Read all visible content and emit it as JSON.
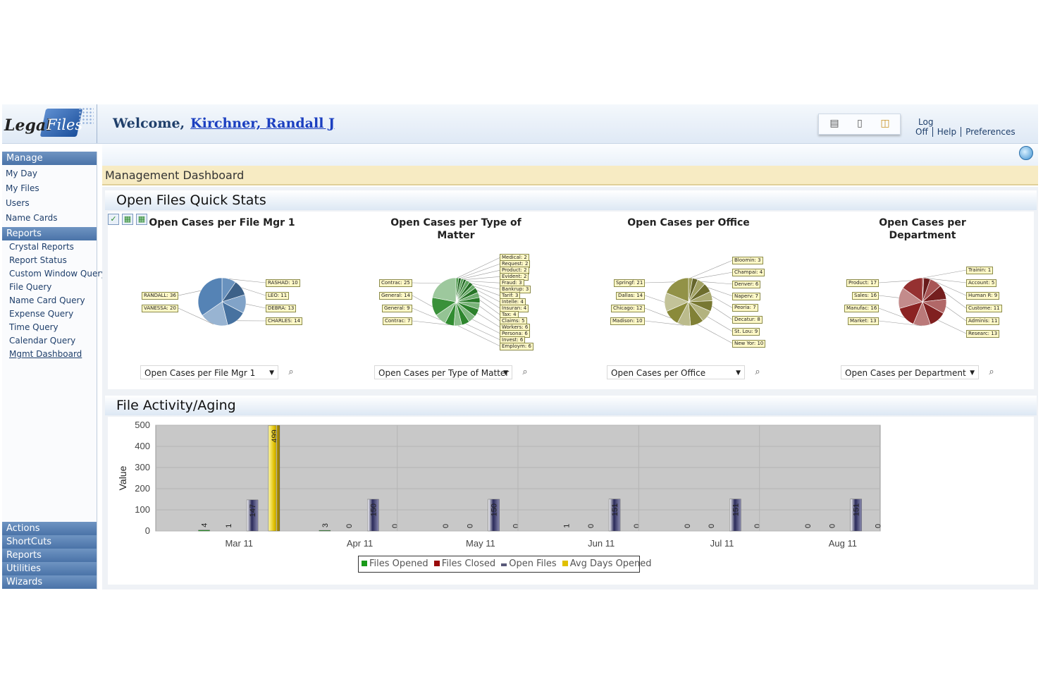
{
  "app": {
    "logo_part1": "Legal",
    "logo_part2": "Files"
  },
  "header": {
    "welcome_prefix": "Welcome,",
    "user_name": "Kirchner, Randall J",
    "links": [
      "Log Off",
      "Help",
      "Preferences"
    ],
    "tool_icons": [
      "properties-icon",
      "new-document-icon",
      "open-folder-icon"
    ]
  },
  "sidebar": {
    "manage_label": "Manage",
    "manage_items": [
      "My Day",
      "My Files",
      "Users",
      "Name Cards"
    ],
    "reports_label": "Reports",
    "reports_items": [
      "Crystal Reports",
      "Report Status",
      "Custom Window Query",
      "File Query",
      "Name Card Query",
      "Expense Query",
      "Time Query",
      "Calendar Query",
      "Mgmt Dashboard"
    ],
    "bottom_sections": [
      "Actions",
      "ShortCuts",
      "Reports",
      "Utilities",
      "Wizards"
    ]
  },
  "dashboard": {
    "title": "Management Dashboard",
    "quick_stats_title": "Open Files Quick Stats",
    "activity_title": "File Activity/Aging"
  },
  "colors": {
    "file_mgr": "#4f7fb2",
    "type_of_matter": "#2e8a2e",
    "office": "#8a8a3a",
    "department": "#8e2424",
    "files_opened": "#1a9a1a",
    "files_closed": "#9a0a0a",
    "open_files": "#2a2a5a",
    "avg_days_opened": "#e0c000"
  },
  "pies": [
    {
      "title_line1": "Open Cases per File Mgr 1",
      "title_line2": "",
      "selector": "Open Cases per File Mgr 1",
      "color": "#4f7fb2",
      "slices": [
        {
          "label": "RASHAD",
          "value": 10
        },
        {
          "label": "LEO",
          "value": 11
        },
        {
          "label": "DEBRA",
          "value": 13
        },
        {
          "label": "CHARLES",
          "value": 14
        },
        {
          "label": "VANESSA",
          "value": 20
        },
        {
          "label": "RANDALL",
          "value": 36
        }
      ]
    },
    {
      "title_line1": "Open Cases per Type of",
      "title_line2": "Matter",
      "selector": "Open Cases per Type of Matter",
      "color": "#2e8a2e",
      "slices": [
        {
          "label": "Medical",
          "value": 2
        },
        {
          "label": "Request",
          "value": 2
        },
        {
          "label": "Product",
          "value": 2
        },
        {
          "label": "Evident",
          "value": 2
        },
        {
          "label": "Fraud",
          "value": 3
        },
        {
          "label": "Bankrup",
          "value": 3
        },
        {
          "label": "Tarif",
          "value": 3
        },
        {
          "label": "Intelle",
          "value": 4
        },
        {
          "label": "Insuran",
          "value": 4
        },
        {
          "label": "Tax",
          "value": 4
        },
        {
          "label": "Claims",
          "value": 5
        },
        {
          "label": "Workers",
          "value": 6
        },
        {
          "label": "Persona",
          "value": 6
        },
        {
          "label": "Invest",
          "value": 6
        },
        {
          "label": "Employm",
          "value": 6
        },
        {
          "label": "Contrac",
          "value": 7
        },
        {
          "label": "General",
          "value": 9
        },
        {
          "label": "General",
          "value": 14
        },
        {
          "label": "Contrac",
          "value": 25
        }
      ]
    },
    {
      "title_line1": "Open Cases per Office",
      "title_line2": "",
      "selector": "Open Cases per Office",
      "color": "#8a8a3a",
      "slices": [
        {
          "label": "Bloomin",
          "value": 3
        },
        {
          "label": "Champai",
          "value": 4
        },
        {
          "label": "Denver",
          "value": 6
        },
        {
          "label": "Naperv",
          "value": 7
        },
        {
          "label": "Peoria",
          "value": 7
        },
        {
          "label": "Decatur",
          "value": 8
        },
        {
          "label": "St. Lou",
          "value": 9
        },
        {
          "label": "New Yor",
          "value": 10
        },
        {
          "label": "Madison",
          "value": 10
        },
        {
          "label": "Chicago",
          "value": 12
        },
        {
          "label": "Dallas",
          "value": 14
        },
        {
          "label": "Springf",
          "value": 21
        }
      ]
    },
    {
      "title_line1": "Open Cases per",
      "title_line2": "Department",
      "selector": "Open Cases per Department",
      "color": "#8e2424",
      "slices": [
        {
          "label": "Trainin",
          "value": 1
        },
        {
          "label": "Account",
          "value": 5
        },
        {
          "label": "Human R",
          "value": 9
        },
        {
          "label": "Custome",
          "value": 11
        },
        {
          "label": "Adminis",
          "value": 11
        },
        {
          "label": "Researc",
          "value": 13
        },
        {
          "label": "Market",
          "value": 13
        },
        {
          "label": "Manufac",
          "value": 16
        },
        {
          "label": "Sales",
          "value": 16
        },
        {
          "label": "Product",
          "value": 17
        }
      ]
    }
  ],
  "chart_data": {
    "type": "bar",
    "categories": [
      "Mar 11",
      "Apr 11",
      "May 11",
      "Jun 11",
      "Jul 11",
      "Aug 11"
    ],
    "ylabel": "Value",
    "ylim": [
      0,
      500
    ],
    "yticks": [
      0,
      100,
      200,
      300,
      400,
      500
    ],
    "grid": true,
    "legend": "bottom",
    "series": [
      {
        "name": "Files Opened",
        "values": [
          4,
          3,
          0,
          1,
          0,
          0
        ]
      },
      {
        "name": "Files Closed",
        "values": [
          1,
          0,
          0,
          0,
          0,
          0
        ]
      },
      {
        "name": "Open Files",
        "values": [
          147,
          150,
          150,
          151,
          151,
          151
        ]
      },
      {
        "name": "Avg Days Opened",
        "values": [
          499,
          0,
          0,
          0,
          0,
          0
        ]
      }
    ]
  }
}
